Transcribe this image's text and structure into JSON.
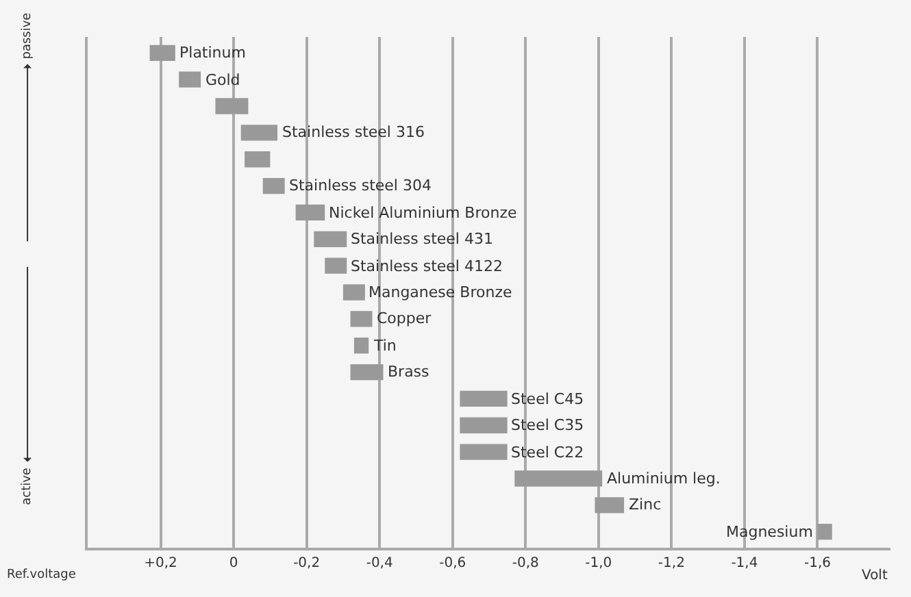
{
  "chart_data": {
    "type": "bar",
    "orientation": "horizontal",
    "xlabel": "Volt",
    "categories": [
      "Platinum",
      "Gold",
      null,
      "Stainless steel 316",
      null,
      "Stainless steel 304",
      "Nickel Aluminium Bronze",
      "Stainless steel 431",
      "Stainless steel 4122",
      "Manganese Bronze",
      "Copper",
      "Tin",
      "Brass",
      "Steel C45",
      "Steel C35",
      "Steel C22",
      "Aluminium leg.",
      "Zinc",
      "Magnesium"
    ],
    "base": [
      0.23,
      0.15,
      0.05,
      -0.02,
      -0.03,
      -0.08,
      -0.17,
      -0.22,
      -0.25,
      -0.3,
      -0.32,
      -0.33,
      -0.32,
      -0.62,
      -0.62,
      -0.62,
      -0.77,
      -0.99,
      -1.6
    ],
    "values": [
      -0.07,
      -0.06,
      -0.09,
      -0.1,
      -0.07,
      -0.06,
      -0.08,
      -0.09,
      -0.06,
      -0.06,
      -0.06,
      -0.04,
      -0.09,
      -0.13,
      -0.13,
      -0.13,
      -0.24,
      -0.08,
      -0.04
    ],
    "color": "#999999",
    "xlim": [
      0.4,
      -1.8
    ],
    "xticks": [
      {
        "value": 0.2,
        "label": "+0,2"
      },
      0,
      {
        "value": -0.2,
        "label": "-0,2"
      },
      {
        "value": -0.4,
        "label": "-0,4"
      },
      {
        "value": -0.6,
        "label": "-0,6"
      },
      {
        "value": -0.8,
        "label": "-0,8"
      },
      {
        "value": -1.0,
        "label": "-1,0"
      },
      {
        "value": -1.2,
        "label": "-1,2"
      },
      {
        "value": -1.4,
        "label": "-1,4"
      },
      {
        "value": -1.6,
        "label": "-1,6"
      }
    ],
    "grid": "x",
    "tick_labels": "x",
    "annotations": [
      "passive",
      "active",
      "Ref.voltage"
    ]
  }
}
